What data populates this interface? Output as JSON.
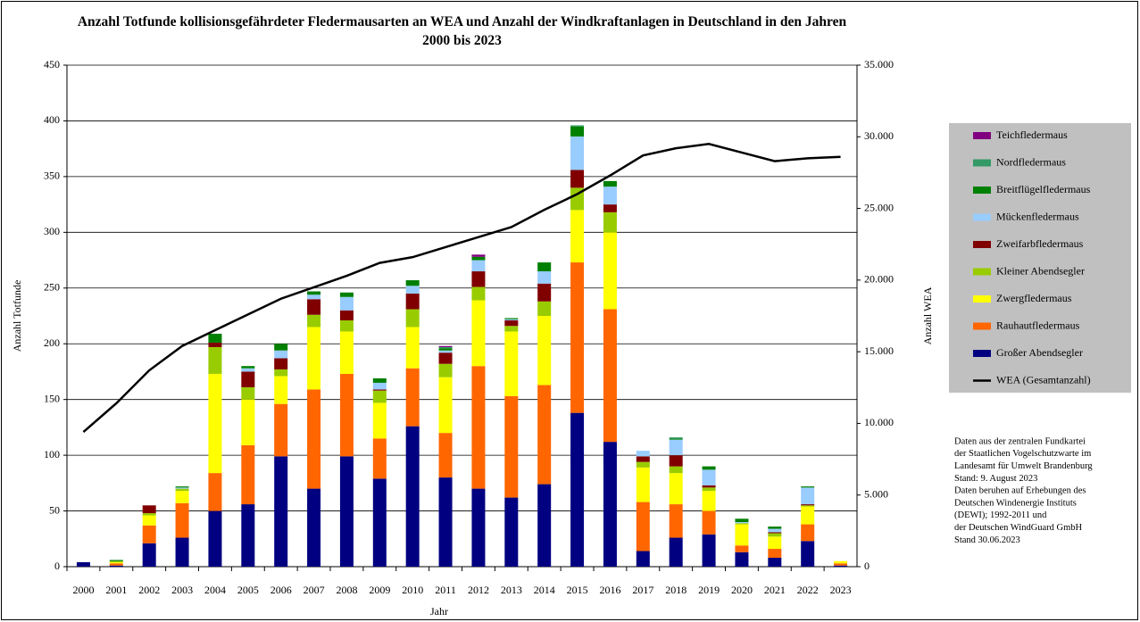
{
  "chart_data": {
    "type": "bar",
    "stacked": true,
    "title": "Anzahl Totfunde kollisionsgefährdeter Fledermausarten an WEA und Anzahl der Windkraftanlagen in Deutschland in den Jahren 2000 bis 2023",
    "xlabel": "Jahr",
    "ylabel": "Anzahl Totfunde",
    "y2label": "Anzahl WEA",
    "categories": [
      "2000",
      "2001",
      "2002",
      "2003",
      "2004",
      "2005",
      "2006",
      "2007",
      "2008",
      "2009",
      "2010",
      "2011",
      "2012",
      "2013",
      "2014",
      "2015",
      "2016",
      "2017",
      "2018",
      "2019",
      "2020",
      "2021",
      "2022",
      "2023"
    ],
    "series": [
      {
        "name": "Großer Abendsegler",
        "color": "#000080",
        "values": [
          4,
          1,
          21,
          26,
          50,
          56,
          99,
          70,
          99,
          79,
          126,
          80,
          70,
          62,
          74,
          138,
          112,
          14,
          26,
          29,
          13,
          8,
          23,
          1
        ]
      },
      {
        "name": "Rauhautfledermaus",
        "color": "#ff6600",
        "values": [
          0,
          2,
          16,
          31,
          34,
          53,
          47,
          89,
          74,
          36,
          52,
          40,
          110,
          91,
          89,
          135,
          119,
          44,
          30,
          21,
          6,
          8,
          15,
          2
        ]
      },
      {
        "name": "Zwergfledermaus",
        "color": "#ffff00",
        "values": [
          0,
          1,
          9,
          11,
          89,
          41,
          25,
          56,
          38,
          32,
          37,
          50,
          59,
          58,
          62,
          47,
          69,
          31,
          28,
          18,
          19,
          11,
          16,
          2
        ]
      },
      {
        "name": "Kleiner Abendsegler",
        "color": "#99cc00",
        "values": [
          0,
          1,
          2,
          2,
          24,
          11,
          6,
          11,
          10,
          11,
          16,
          12,
          12,
          5,
          13,
          20,
          18,
          5,
          6,
          3,
          1,
          3,
          1,
          0
        ]
      },
      {
        "name": "Zweifarbfledermaus",
        "color": "#800000",
        "values": [
          0,
          0,
          7,
          0,
          4,
          14,
          10,
          14,
          9,
          1,
          14,
          10,
          14,
          5,
          16,
          16,
          7,
          5,
          10,
          2,
          0,
          1,
          1,
          0
        ]
      },
      {
        "name": "Mückenfledermaus",
        "color": "#99ccff",
        "values": [
          0,
          0,
          0,
          1,
          0,
          3,
          7,
          4,
          12,
          6,
          7,
          2,
          10,
          1,
          11,
          30,
          16,
          5,
          14,
          14,
          1,
          3,
          15,
          0
        ]
      },
      {
        "name": "Breitflügelfledermaus",
        "color": "#008000",
        "values": [
          0,
          1,
          0,
          1,
          8,
          2,
          6,
          3,
          4,
          4,
          5,
          2,
          3,
          1,
          8,
          9,
          5,
          0,
          1,
          3,
          3,
          2,
          1,
          0
        ]
      },
      {
        "name": "Nordfledermaus",
        "color": "#339966",
        "values": [
          0,
          0,
          0,
          0,
          0,
          0,
          0,
          0,
          0,
          0,
          0,
          1,
          0,
          0,
          0,
          1,
          0,
          0,
          1,
          0,
          0,
          0,
          0,
          0
        ]
      },
      {
        "name": "Teichfledermaus",
        "color": "#800080",
        "values": [
          0,
          0,
          0,
          0,
          0,
          0,
          0,
          0,
          0,
          0,
          0,
          1,
          2,
          0,
          0,
          0,
          0,
          0,
          0,
          0,
          0,
          0,
          0,
          0
        ]
      },
      {
        "name": "WEA (Gesamtanzahl)",
        "color": "#000000",
        "type": "line",
        "axis": "y2",
        "values": [
          9400,
          11400,
          13700,
          15400,
          16500,
          17600,
          18700,
          19500,
          20300,
          21200,
          21600,
          22300,
          23000,
          23700,
          24900,
          26000,
          27300,
          28700,
          29200,
          29500,
          28900,
          28300,
          28500,
          28600
        ]
      }
    ],
    "ylim": [
      0,
      450
    ],
    "yticks": [
      0,
      50,
      100,
      150,
      200,
      250,
      300,
      350,
      400,
      450
    ],
    "y2lim": [
      0,
      35000
    ],
    "y2ticks": [
      0,
      {
        "value": 5000,
        "label": "5.000"
      },
      {
        "value": 10000,
        "label": "10.000"
      },
      {
        "value": 15000,
        "label": "15.000"
      },
      {
        "value": 20000,
        "label": "20.000"
      },
      {
        "value": 25000,
        "label": "25.000"
      },
      {
        "value": 30000,
        "label": "30.000"
      },
      {
        "value": 35000,
        "label": "35.000"
      }
    ],
    "grid": true,
    "legend": "right",
    "notes": [
      "Daten aus der zentralen Fundkartei",
      "der Staatlichen Vogelschutzwarte im",
      "Landesamt für Umwelt Brandenburg",
      "Stand: 9. August 2023",
      "Daten beruhen auf Erhebungen des",
      "Deutschen Windenergie Instituts",
      "(DEWI); 1992-2011 und",
      "der Deutschen WindGuard GmbH",
      "Stand 30.06.2023"
    ]
  }
}
